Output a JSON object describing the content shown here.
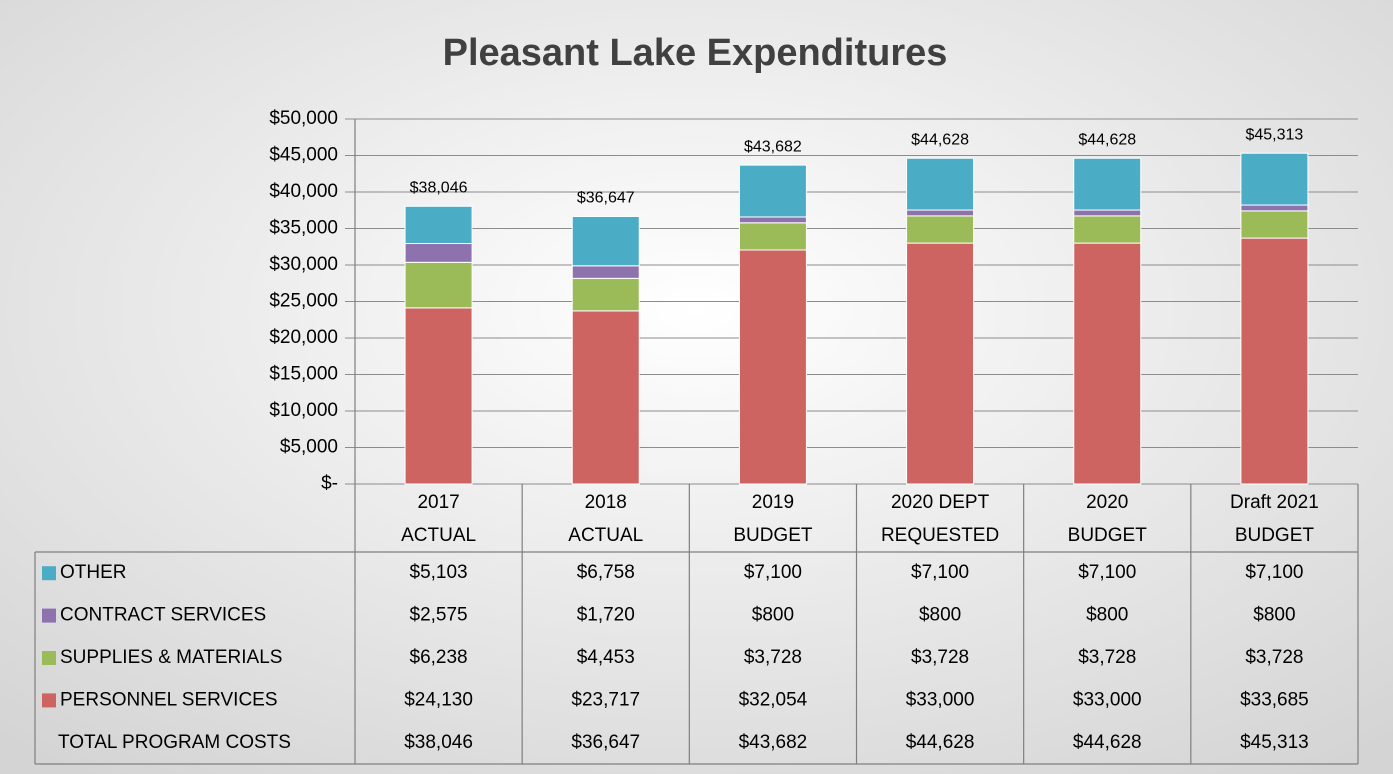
{
  "chart_data": {
    "type": "bar",
    "stacked": true,
    "title": "Pleasant Lake Expenditures",
    "categories": [
      [
        "2017",
        "ACTUAL"
      ],
      [
        "2018",
        "ACTUAL"
      ],
      [
        "2019",
        "BUDGET"
      ],
      [
        "2020 DEPT",
        "REQUESTED"
      ],
      [
        "2020",
        "BUDGET"
      ],
      [
        "Draft 2021",
        "BUDGET"
      ]
    ],
    "series": [
      {
        "name": "PERSONNEL SERVICES",
        "color": "#cd6461",
        "values": [
          24130,
          23717,
          32054,
          33000,
          33000,
          33685
        ],
        "value_labels": [
          "$24,130",
          "$23,717",
          "$32,054",
          "$33,000",
          "$33,000",
          "$33,685"
        ]
      },
      {
        "name": "SUPPLIES & MATERIALS",
        "color": "#9bbb59",
        "values": [
          6238,
          4453,
          3728,
          3728,
          3728,
          3728
        ],
        "value_labels": [
          "$6,238",
          "$4,453",
          "$3,728",
          "$3,728",
          "$3,728",
          "$3,728"
        ]
      },
      {
        "name": "CONTRACT SERVICES",
        "color": "#8e72ae",
        "values": [
          2575,
          1720,
          800,
          800,
          800,
          800
        ],
        "value_labels": [
          "$2,575",
          "$1,720",
          "$800",
          "$800",
          "$800",
          "$800"
        ]
      },
      {
        "name": "OTHER",
        "color": "#4bacc6",
        "values": [
          5103,
          6758,
          7100,
          7100,
          7100,
          7100
        ],
        "value_labels": [
          "$5,103",
          "$6,758",
          "$7,100",
          "$7,100",
          "$7,100",
          "$7,100"
        ]
      }
    ],
    "totals": {
      "name": "TOTAL PROGRAM COSTS",
      "values": [
        38046,
        36647,
        43682,
        44628,
        44628,
        45313
      ],
      "value_labels": [
        "$38,046",
        "$36,647",
        "$43,682",
        "$44,628",
        "$44,628",
        "$45,313"
      ]
    },
    "ylim": [
      0,
      50000
    ],
    "yticks": [
      {
        "value": 0,
        "label": "$-"
      },
      {
        "value": 5000,
        "label": "$5,000"
      },
      {
        "value": 10000,
        "label": "$10,000"
      },
      {
        "value": 15000,
        "label": "$15,000"
      },
      {
        "value": 20000,
        "label": "$20,000"
      },
      {
        "value": 25000,
        "label": "$25,000"
      },
      {
        "value": 30000,
        "label": "$30,000"
      },
      {
        "value": 35000,
        "label": "$35,000"
      },
      {
        "value": 40000,
        "label": "$40,000"
      },
      {
        "value": 45000,
        "label": "$45,000"
      },
      {
        "value": 50000,
        "label": "$50,000"
      }
    ],
    "grid": true
  }
}
